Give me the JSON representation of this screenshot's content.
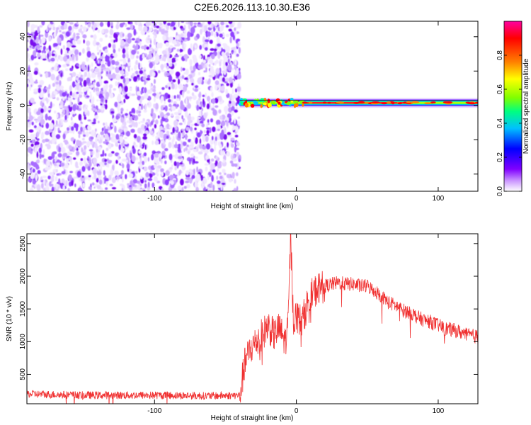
{
  "title": "C2E6.2026.113.10.30.E36",
  "chart_data": [
    {
      "type": "heatmap",
      "xlabel": "Height of straight line (km)",
      "ylabel": "Frequency (Hz)",
      "xlim": [
        -190,
        128
      ],
      "ylim": [
        -50,
        49
      ],
      "x_ticks": [
        "-100",
        "0",
        "100"
      ],
      "y_ticks": [
        "-40",
        "-20",
        "0",
        "20",
        "40"
      ],
      "noise_region_x": [
        -190,
        -40
      ],
      "signal_region_x": [
        -40,
        128
      ],
      "signal_center_hz": 1.5,
      "colorbar": {
        "label": "Normalized spectral amplitude",
        "range": [
          0.0,
          1.0
        ],
        "ticks": [
          "0.0",
          "0.2",
          "0.4",
          "0.6",
          "0.8"
        ],
        "colors": [
          "#ffffff",
          "#cc99ff",
          "#8000ff",
          "#0000ff",
          "#00c0ff",
          "#00ff80",
          "#80ff00",
          "#ffff00",
          "#ff8000",
          "#ff0000",
          "#ff00a0"
        ]
      }
    },
    {
      "type": "line",
      "xlabel": "Height of straight line (km)",
      "ylabel": "SNR (10 * v/v)",
      "xlim": [
        -190,
        128
      ],
      "ylim": [
        50,
        2650
      ],
      "x_ticks": [
        "-100",
        "0",
        "100"
      ],
      "y_ticks": [
        "500",
        "1000",
        "1500",
        "2000",
        "2500"
      ],
      "color": "#f03030",
      "series": [
        {
          "x": [
            -190,
            -150,
            -100,
            -60,
            -40,
            -36,
            -32,
            -28,
            -24,
            -20,
            -16,
            -12,
            -8,
            -6,
            -4,
            -2,
            0,
            4,
            8,
            12,
            16,
            20,
            25,
            30,
            35,
            40,
            45,
            50,
            55,
            60,
            65,
            70,
            75,
            80,
            85,
            90,
            95,
            100,
            105,
            110,
            115,
            120,
            128
          ],
          "y": [
            200,
            180,
            180,
            170,
            180,
            700,
            900,
            1000,
            1100,
            1250,
            1100,
            1200,
            1000,
            1200,
            2600,
            1300,
            1400,
            1300,
            1600,
            1750,
            1820,
            1850,
            1880,
            1900,
            1880,
            1880,
            1850,
            1850,
            1780,
            1700,
            1600,
            1550,
            1480,
            1450,
            1380,
            1330,
            1300,
            1250,
            1200,
            1180,
            1150,
            1100,
            1080
          ]
        }
      ]
    }
  ]
}
